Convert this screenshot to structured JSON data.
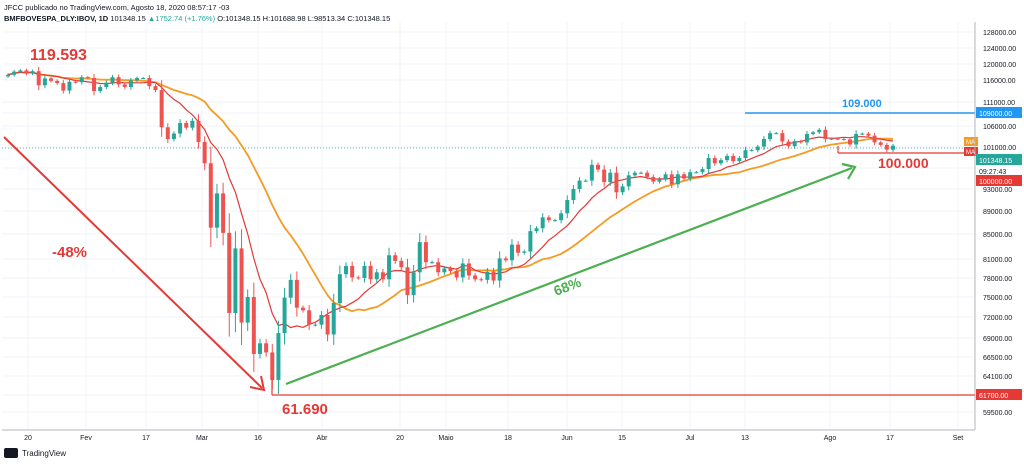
{
  "header": {
    "line1": "JFCC publicado no TradingView.com, Agosto 18, 2020 08:57:17 -03",
    "symbol": "BMFBOVESPA_DLY:IBOV, 1D",
    "last": "101348.15",
    "change": "▲1752.74 (+1.76%)",
    "ohlc": "O:101348.15 H:101688.98 L:98513.34 C:101348.15"
  },
  "footer": {
    "brand": "TradingView"
  },
  "colors": {
    "up": "#26a69a",
    "down": "#ef5350",
    "ma_fast": "#e53935",
    "ma_slow": "#f59a23",
    "resistance": "#2196f3",
    "support": "#e53935",
    "trend_up": "#4caf50",
    "trend_down": "#e53935"
  },
  "chart_data": {
    "type": "candlestick",
    "series": [
      {
        "name": "MA"
      },
      {
        "name": "MA"
      }
    ],
    "y_ticks": [
      "128000.00",
      "124000.00",
      "120000.00",
      "116000.00",
      "111000.00",
      "109000.00",
      "106000.00",
      "101000.00",
      "97000.00",
      "93000.00",
      "89000.00",
      "85000.00",
      "81000.00",
      "78000.00",
      "75000.00",
      "72000.00",
      "69000.00",
      "66500.00",
      "64100.00",
      "61700.00",
      "59500.00"
    ],
    "x_ticks": [
      "20",
      "Fev",
      "17",
      "Mar",
      "16",
      "Abr",
      "20",
      "Maio",
      "18",
      "Jun",
      "15",
      "Jul",
      "13",
      "Ago",
      "17",
      "Set"
    ],
    "price_labels": {
      "resistance": "109000.00",
      "current": "101348.15",
      "countdown": "09:27:43",
      "support_100k": "100000.00",
      "support_61k": "61700.00"
    },
    "annotations": {
      "high": "119.593",
      "drop": "-48%",
      "low": "61.690",
      "rise": "68%",
      "resistance": "109.000",
      "support": "100.000"
    },
    "ma_tag": "MA",
    "dates": [
      "2020-01-20",
      "2020-01-21",
      "2020-01-22",
      "2020-01-23",
      "2020-01-24",
      "2020-01-27",
      "2020-01-28",
      "2020-01-29",
      "2020-01-30",
      "2020-01-31",
      "2020-02-03",
      "2020-02-04",
      "2020-02-05",
      "2020-02-06",
      "2020-02-07",
      "2020-02-10",
      "2020-02-11",
      "2020-02-12",
      "2020-02-13",
      "2020-02-14",
      "2020-02-17",
      "2020-02-18",
      "2020-02-19",
      "2020-02-20",
      "2020-02-21",
      "2020-02-26",
      "2020-02-27",
      "2020-02-28",
      "2020-03-02",
      "2020-03-03",
      "2020-03-04",
      "2020-03-05",
      "2020-03-06",
      "2020-03-09",
      "2020-03-10",
      "2020-03-11",
      "2020-03-12",
      "2020-03-13",
      "2020-03-16",
      "2020-03-17",
      "2020-03-18",
      "2020-03-19",
      "2020-03-20",
      "2020-03-23",
      "2020-03-24",
      "2020-03-25",
      "2020-03-26",
      "2020-03-27",
      "2020-03-30",
      "2020-03-31",
      "2020-04-01",
      "2020-04-02",
      "2020-04-03",
      "2020-04-06",
      "2020-04-07",
      "2020-04-08",
      "2020-04-09",
      "2020-04-13",
      "2020-04-14",
      "2020-04-15",
      "2020-04-16",
      "2020-04-17",
      "2020-04-20",
      "2020-04-22",
      "2020-04-23",
      "2020-04-24",
      "2020-04-27",
      "2020-04-28",
      "2020-04-29",
      "2020-04-30",
      "2020-05-04",
      "2020-05-05",
      "2020-05-06",
      "2020-05-07",
      "2020-05-08",
      "2020-05-11",
      "2020-05-12",
      "2020-05-13",
      "2020-05-14",
      "2020-05-15",
      "2020-05-18",
      "2020-05-19",
      "2020-05-20",
      "2020-05-21",
      "2020-05-22",
      "2020-05-25",
      "2020-05-26",
      "2020-05-27",
      "2020-05-28",
      "2020-05-29",
      "2020-06-01",
      "2020-06-02",
      "2020-06-03",
      "2020-06-04",
      "2020-06-05",
      "2020-06-08",
      "2020-06-09",
      "2020-06-10",
      "2020-06-12",
      "2020-06-15",
      "2020-06-16",
      "2020-06-17",
      "2020-06-18",
      "2020-06-19",
      "2020-06-22",
      "2020-06-23",
      "2020-06-24",
      "2020-06-25",
      "2020-06-26",
      "2020-06-29",
      "2020-06-30",
      "2020-07-01",
      "2020-07-02",
      "2020-07-03",
      "2020-07-06",
      "2020-07-07",
      "2020-07-08",
      "2020-07-09",
      "2020-07-10",
      "2020-07-13",
      "2020-07-14",
      "2020-07-15",
      "2020-07-16",
      "2020-07-17",
      "2020-07-20",
      "2020-07-21",
      "2020-07-22",
      "2020-07-23",
      "2020-07-24",
      "2020-07-27",
      "2020-07-28",
      "2020-07-29",
      "2020-07-30",
      "2020-07-31",
      "2020-08-03",
      "2020-08-04",
      "2020-08-05",
      "2020-08-06",
      "2020-08-07",
      "2020-08-10",
      "2020-08-11",
      "2020-08-12",
      "2020-08-13",
      "2020-08-14",
      "2020-08-17"
    ],
    "close": [
      117300,
      118100,
      118400,
      117600,
      118200,
      114800,
      116400,
      115800,
      115300,
      113600,
      115600,
      115500,
      116700,
      116500,
      113500,
      114400,
      115400,
      116700,
      115000,
      114400,
      115900,
      116500,
      116500,
      114600,
      113700,
      105700,
      102900,
      104200,
      106700,
      105600,
      107200,
      102200,
      97900,
      86100,
      92200,
      85200,
      72600,
      82700,
      71200,
      75000,
      66900,
      68300,
      67100,
      63600,
      69700,
      74900,
      77700,
      73400,
      73000,
      70900,
      70900,
      72300,
      69500,
      74100,
      78600,
      79900,
      78100,
      78000,
      79900,
      77800,
      78900,
      77800,
      81600,
      80700,
      79700,
      75300,
      78900,
      83700,
      80500,
      80500,
      78900,
      79500,
      79100,
      78100,
      80300,
      78400,
      77800,
      77700,
      79000,
      77600,
      81100,
      80800,
      83300,
      82000,
      82200,
      85500,
      86000,
      87900,
      87400,
      87400,
      88600,
      91000,
      93000,
      94600,
      94600,
      97600,
      96700,
      94300,
      96100,
      92400,
      93500,
      95600,
      96100,
      96100,
      95300,
      94400,
      94900,
      95800,
      93900,
      95800,
      95000,
      96200,
      96200,
      96800,
      98900,
      97900,
      98500,
      99300,
      98300,
      98900,
      100400,
      100400,
      101100,
      102900,
      104300,
      104300,
      102300,
      101200,
      102400,
      102100,
      104100,
      104500,
      105100,
      102900,
      103000,
      102900,
      102800,
      101600,
      104100,
      104200,
      103700,
      102100,
      101500,
      100500,
      101300
    ],
    "candles_note": "Daily OHLC approximated from the chart; open derived from previous close with visible candle direction."
  }
}
